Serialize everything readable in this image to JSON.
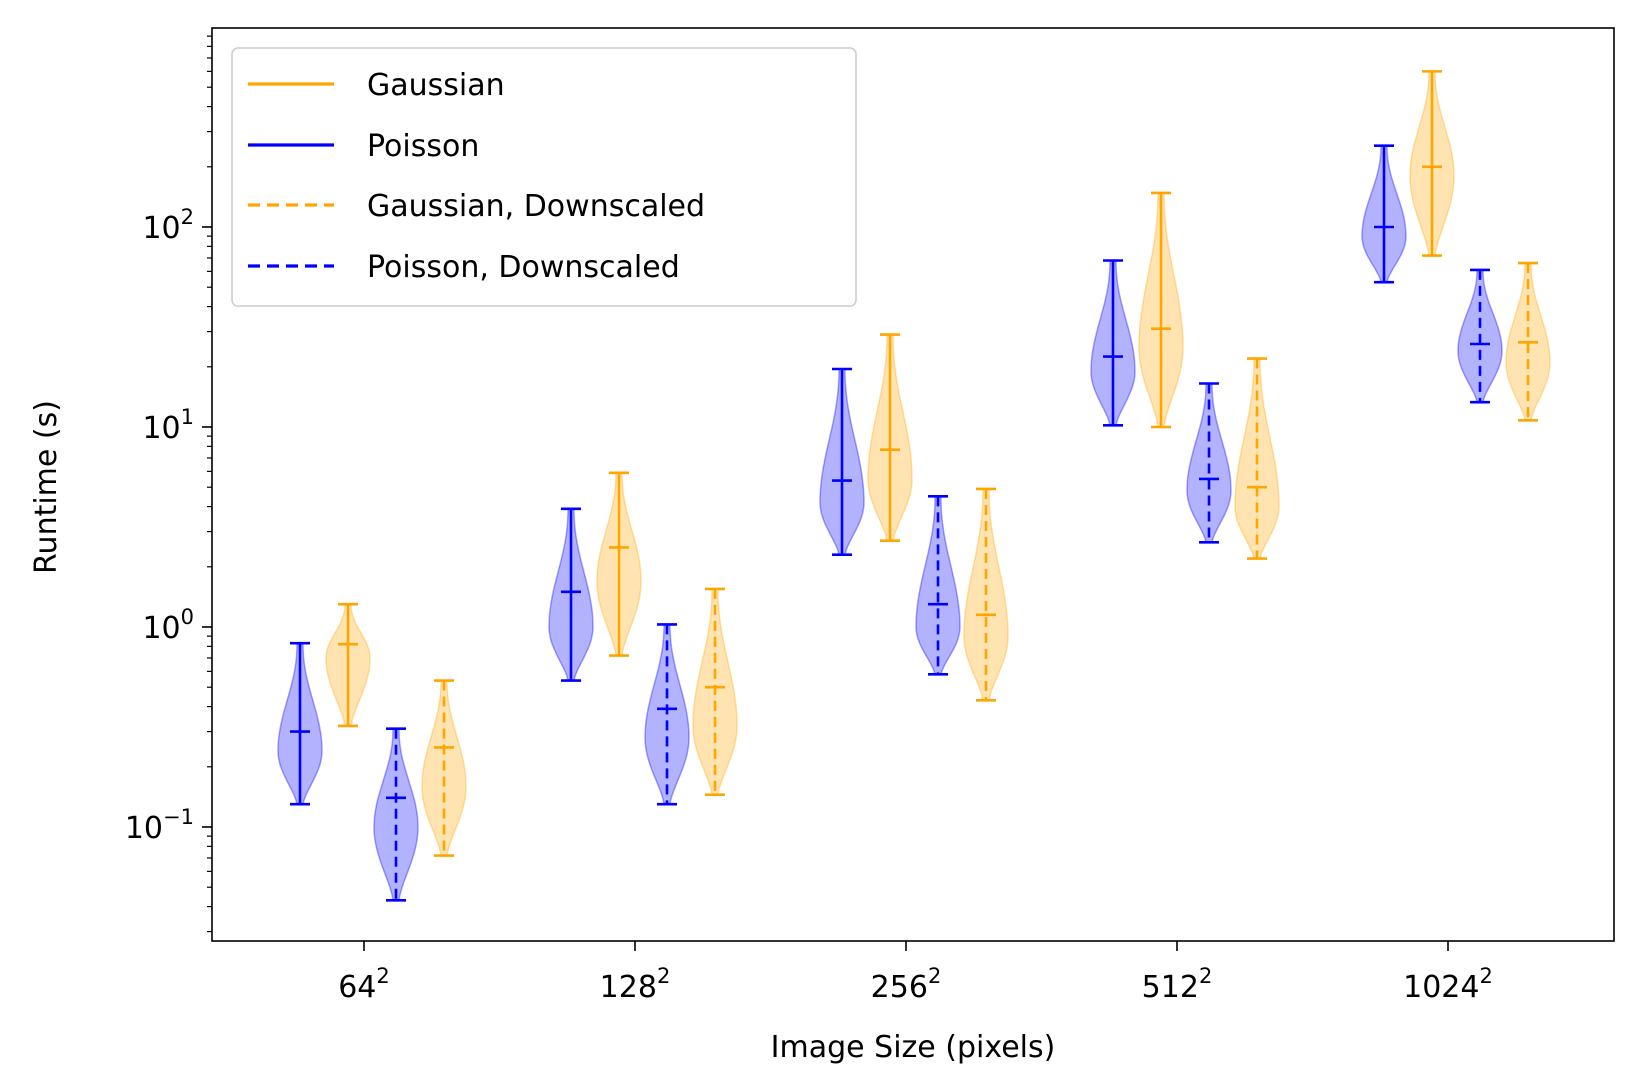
{
  "chart_data": {
    "type": "violin",
    "xlabel": "Image Size (pixels)",
    "ylabel": "Runtime (s)",
    "yscale": "log",
    "ylim": [
      0.026,
      900
    ],
    "y_ticks": [
      {
        "value": 0.1,
        "base": "10",
        "exp": "−1"
      },
      {
        "value": 1,
        "base": "10",
        "exp": "0"
      },
      {
        "value": 10,
        "base": "10",
        "exp": "1"
      },
      {
        "value": 100,
        "base": "10",
        "exp": "2"
      }
    ],
    "categories": [
      {
        "base": "64",
        "exp": "2"
      },
      {
        "base": "128",
        "exp": "2"
      },
      {
        "base": "256",
        "exp": "2"
      },
      {
        "base": "512",
        "exp": "2"
      },
      {
        "base": "1024",
        "exp": "2"
      }
    ],
    "grid": false,
    "legend_position": "top-left",
    "series": [
      {
        "name": "Gaussian",
        "color": "#FFA500",
        "linestyle": "solid",
        "violins": [
          {
            "min": 0.32,
            "max": 1.3,
            "median": 0.82,
            "mode": 0.7
          },
          {
            "min": 0.72,
            "max": 5.9,
            "median": 2.5,
            "mode": 1.7
          },
          {
            "min": 2.7,
            "max": 29,
            "median": 7.7,
            "mode": 5.5
          },
          {
            "min": 10,
            "max": 148,
            "median": 31,
            "mode": 25
          },
          {
            "min": 72,
            "max": 600,
            "median": 200,
            "mode": 180
          }
        ]
      },
      {
        "name": "Poisson",
        "color": "#0000FF",
        "linestyle": "solid",
        "violins": [
          {
            "min": 0.13,
            "max": 0.83,
            "median": 0.3,
            "mode": 0.24
          },
          {
            "min": 0.54,
            "max": 3.9,
            "median": 1.5,
            "mode": 1.0
          },
          {
            "min": 2.3,
            "max": 19.5,
            "median": 5.4,
            "mode": 4.2
          },
          {
            "min": 10.2,
            "max": 68,
            "median": 22.5,
            "mode": 19
          },
          {
            "min": 53,
            "max": 255,
            "median": 100,
            "mode": 90
          }
        ]
      },
      {
        "name": "Gaussian, Downscaled",
        "color": "#FFA500",
        "linestyle": "dashed",
        "violins": [
          {
            "min": 0.072,
            "max": 0.54,
            "median": 0.25,
            "mode": 0.16
          },
          {
            "min": 0.145,
            "max": 1.55,
            "median": 0.5,
            "mode": 0.32
          },
          {
            "min": 0.43,
            "max": 4.9,
            "median": 1.15,
            "mode": 0.9
          },
          {
            "min": 2.2,
            "max": 22,
            "median": 5.0,
            "mode": 4.0
          },
          {
            "min": 10.8,
            "max": 66,
            "median": 26.5,
            "mode": 21
          }
        ]
      },
      {
        "name": "Poisson, Downscaled",
        "color": "#0000FF",
        "linestyle": "dashed",
        "violins": [
          {
            "min": 0.043,
            "max": 0.31,
            "median": 0.14,
            "mode": 0.1
          },
          {
            "min": 0.13,
            "max": 1.03,
            "median": 0.39,
            "mode": 0.28
          },
          {
            "min": 0.58,
            "max": 4.5,
            "median": 1.3,
            "mode": 1.0
          },
          {
            "min": 2.65,
            "max": 16.5,
            "median": 5.5,
            "mode": 4.8
          },
          {
            "min": 13.3,
            "max": 61,
            "median": 26,
            "mode": 24
          }
        ]
      }
    ]
  }
}
